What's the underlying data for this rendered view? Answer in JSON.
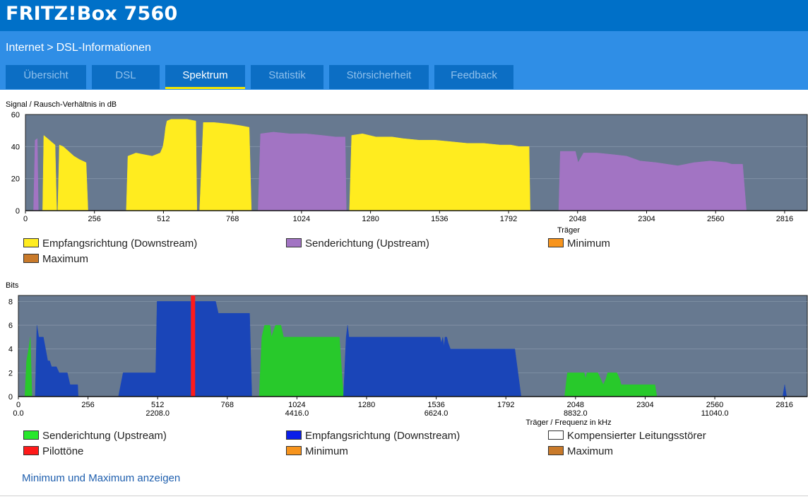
{
  "app": {
    "title": "FRITZ!Box 7560"
  },
  "breadcrumb": {
    "parent": "Internet",
    "separator": ">",
    "current": "DSL-Informationen"
  },
  "tabs": [
    {
      "label": "Übersicht",
      "active": false
    },
    {
      "label": "DSL",
      "active": false
    },
    {
      "label": "Spektrum",
      "active": true
    },
    {
      "label": "Statistik",
      "active": false
    },
    {
      "label": "Störsicherheit",
      "active": false
    },
    {
      "label": "Feedback",
      "active": false
    }
  ],
  "colors": {
    "header": "#0070c8",
    "subheader": "#2f8ee6",
    "tab": "#0c6ec4",
    "tab_active_underline": "#f2e600",
    "plot_bg": "#677990",
    "downstream_snr": "#ffec1f",
    "upstream_snr": "#a274c3",
    "upstream_bits": "#28c92b",
    "downstream_bits": "#1a45b8",
    "pilot": "#ff1a1a",
    "minimum": "#f7941d",
    "maximum": "#c97a2a",
    "compensated": "#ffffff"
  },
  "chart_data": [
    {
      "type": "area",
      "title": "Signal / Rausch-Verhältnis in dB",
      "xlabel": "Träger",
      "ylabel": "",
      "xlim": [
        0,
        2900
      ],
      "ylim": [
        0,
        60
      ],
      "x_ticks": [
        "0",
        "256",
        "512",
        "768",
        "1024",
        "1280",
        "1536",
        "1792",
        "2048",
        "2304",
        "2560",
        "2816"
      ],
      "y_ticks": [
        "0",
        "20",
        "40",
        "60"
      ],
      "series": [
        {
          "name": "Empfangsrichtung (Downstream)",
          "color": "#ffec1f",
          "segments": [
            [
              [
                64,
                0
              ],
              [
                68,
                47
              ],
              [
                110,
                41
              ],
              [
                116,
                0
              ]
            ],
            [
              [
                120,
                0
              ],
              [
                126,
                41
              ],
              [
                140,
                40
              ],
              [
                160,
                37
              ],
              [
                180,
                34
              ],
              [
                200,
                32
              ],
              [
                225,
                30
              ],
              [
                232,
                0
              ]
            ],
            [
              [
                374,
                0
              ],
              [
                380,
                34
              ],
              [
                410,
                36
              ],
              [
                440,
                35
              ],
              [
                470,
                34
              ],
              [
                500,
                36
              ],
              [
                505,
                38
              ],
              [
                510,
                40
              ],
              [
                515,
                45
              ],
              [
                520,
                52
              ],
              [
                525,
                56
              ],
              [
                540,
                57
              ],
              [
                600,
                57
              ],
              [
                632,
                56
              ],
              [
                636,
                0
              ]
            ],
            [
              [
                646,
                0
              ],
              [
                660,
                55
              ],
              [
                700,
                55
              ],
              [
                760,
                54
              ],
              [
                800,
                53
              ],
              [
                830,
                52
              ],
              [
                838,
                0
              ]
            ],
            [
              [
                1202,
                0
              ],
              [
                1210,
                47
              ],
              [
                1250,
                48
              ],
              [
                1300,
                46
              ],
              [
                1360,
                46
              ],
              [
                1400,
                45
              ],
              [
                1460,
                44
              ],
              [
                1520,
                44
              ],
              [
                1580,
                43
              ],
              [
                1640,
                42
              ],
              [
                1700,
                42
              ],
              [
                1760,
                41
              ],
              [
                1800,
                41
              ],
              [
                1830,
                40
              ],
              [
                1868,
                40
              ],
              [
                1872,
                0
              ]
            ]
          ]
        },
        {
          "name": "Senderichtung (Upstream)",
          "color": "#a274c3",
          "segments": [
            [
              [
                30,
                0
              ],
              [
                36,
                44
              ],
              [
                44,
                45
              ],
              [
                48,
                0
              ]
            ],
            [
              [
                863,
                0
              ],
              [
                872,
                48
              ],
              [
                920,
                49
              ],
              [
                980,
                48
              ],
              [
                1040,
                48
              ],
              [
                1100,
                47
              ],
              [
                1150,
                46
              ],
              [
                1186,
                46
              ],
              [
                1190,
                0
              ]
            ],
            [
              [
                1978,
                0
              ],
              [
                1984,
                37
              ],
              [
                2040,
                37
              ],
              [
                2050,
                30
              ],
              [
                2070,
                36
              ],
              [
                2120,
                36
              ],
              [
                2180,
                35
              ],
              [
                2230,
                34
              ],
              [
                2280,
                31
              ],
              [
                2340,
                30
              ],
              [
                2380,
                29
              ],
              [
                2420,
                28
              ],
              [
                2480,
                30
              ],
              [
                2540,
                31
              ],
              [
                2600,
                30
              ],
              [
                2620,
                29
              ],
              [
                2660,
                29
              ],
              [
                2674,
                0
              ]
            ]
          ]
        }
      ]
    },
    {
      "type": "area",
      "title": "Bits",
      "xlabel": "Träger / Frequenz in kHz",
      "ylabel": "",
      "xlim": [
        0,
        2900
      ],
      "ylim": [
        0,
        8.5
      ],
      "x_ticks": [
        "0",
        "256",
        "512",
        "768",
        "1024",
        "1280",
        "1536",
        "1792",
        "2048",
        "2304",
        "2560",
        "2816"
      ],
      "x_ticks_khz": [
        "0.0",
        "2208.0",
        "4416.0",
        "6624.0",
        "8832.0",
        "11040.0"
      ],
      "y_ticks": [
        "0",
        "2",
        "4",
        "6",
        "8"
      ],
      "series": [
        {
          "name": "Senderichtung (Upstream)",
          "color": "#28c92b",
          "segments": [
            [
              [
                24,
                0
              ],
              [
                30,
                3
              ],
              [
                38,
                4
              ],
              [
                44,
                5
              ],
              [
                50,
                0
              ]
            ],
            [
              [
                885,
                0
              ],
              [
                895,
                5
              ],
              [
                905,
                6
              ],
              [
                925,
                6
              ],
              [
                930,
                5
              ],
              [
                945,
                6
              ],
              [
                965,
                6
              ],
              [
                975,
                5
              ],
              [
                1180,
                5
              ],
              [
                1195,
                0
              ]
            ],
            [
              [
                2008,
                0
              ],
              [
                2018,
                2
              ],
              [
                2080,
                2
              ],
              [
                2085,
                1.5
              ],
              [
                2090,
                2
              ],
              [
                2130,
                2
              ],
              [
                2140,
                1.5
              ],
              [
                2150,
                1
              ],
              [
                2160,
                1.5
              ],
              [
                2166,
                2
              ],
              [
                2200,
                2
              ],
              [
                2210,
                1.5
              ],
              [
                2216,
                1
              ],
              [
                2340,
                1
              ],
              [
                2347,
                0
              ]
            ]
          ]
        },
        {
          "name": "Empfangsrichtung (Downstream)",
          "color": "#1a45b8",
          "segments": [
            [
              [
                62,
                0
              ],
              [
                68,
                6
              ],
              [
                75,
                5
              ],
              [
                92,
                5
              ],
              [
                100,
                4
              ],
              [
                108,
                3
              ],
              [
                115,
                3
              ],
              [
                122,
                2.5
              ],
              [
                140,
                2.5
              ],
              [
                150,
                2
              ],
              [
                180,
                2
              ],
              [
                190,
                1
              ],
              [
                218,
                1
              ],
              [
                220,
                0
              ]
            ],
            [
              [
                368,
                0
              ],
              [
                385,
                2
              ],
              [
                505,
                2
              ],
              [
                510,
                8
              ],
              [
                635,
                8
              ],
              [
                648,
                8
              ],
              [
                725,
                8
              ],
              [
                735,
                7
              ],
              [
                850,
                7
              ],
              [
                858,
                0
              ]
            ],
            [
              [
                1195,
                0
              ],
              [
                1205,
                5
              ],
              [
                1210,
                6
              ],
              [
                1215,
                5
              ],
              [
                1550,
                5
              ],
              [
                1555,
                4.5
              ],
              [
                1560,
                5
              ],
              [
                1565,
                4.2
              ],
              [
                1568,
                5
              ],
              [
                1575,
                5
              ],
              [
                1580,
                4.5
              ],
              [
                1588,
                4
              ],
              [
                1825,
                4
              ],
              [
                1848,
                0
              ]
            ],
            [
              [
                2810,
                0
              ],
              [
                2817,
                1
              ],
              [
                2824,
                0
              ]
            ]
          ]
        },
        {
          "name": "Pilottöne",
          "color": "#ff1a1a",
          "markers": [
            {
              "x": 642,
              "y": 8.5
            }
          ]
        }
      ]
    }
  ],
  "legend1": [
    {
      "label": "Empfangsrichtung (Downstream)",
      "color": "#ffec1f"
    },
    {
      "label": "Senderichtung (Upstream)",
      "color": "#a274c3"
    },
    {
      "label": "Minimum",
      "color": "#f7941d"
    },
    {
      "label": "Maximum",
      "color": "#c97a2a"
    }
  ],
  "legend2": [
    {
      "label": "Senderichtung (Upstream)",
      "color": "#28e82b"
    },
    {
      "label": "Empfangsrichtung (Downstream)",
      "color": "#0a1ee8"
    },
    {
      "label": "Kompensierter Leitungsstörer",
      "color": "#ffffff"
    },
    {
      "label": "Pilottöne",
      "color": "#ff1a1a"
    },
    {
      "label": "Minimum",
      "color": "#f7941d"
    },
    {
      "label": "Maximum",
      "color": "#c97a2a"
    }
  ],
  "link": {
    "minmax": "Minimum und Maximum anzeigen"
  }
}
